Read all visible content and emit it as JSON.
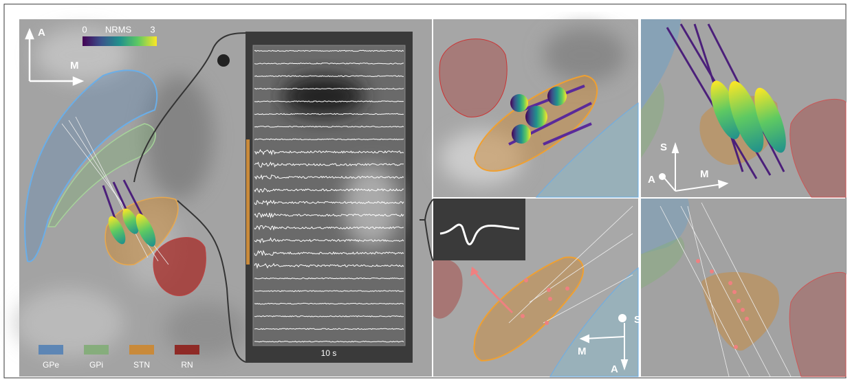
{
  "main_view": {
    "anterior": "A",
    "medial": "M"
  },
  "colorbar": {
    "min": 0,
    "label": "NRMS",
    "max": 3
  },
  "recordings": {
    "time_scale": "10 s"
  },
  "legend": [
    {
      "label": "GPe",
      "color": "#5d86b5"
    },
    {
      "label": "GPi",
      "color": "#86ad7c"
    },
    {
      "label": "STN",
      "color": "#c98a3a"
    },
    {
      "label": "RN",
      "color": "#8f2a26"
    }
  ],
  "top_right_view": {
    "superior": "S",
    "anterior": "A",
    "medial": "M"
  },
  "bottom_middle_view": {
    "superior": "S",
    "medial": "M",
    "anterior": "A"
  }
}
